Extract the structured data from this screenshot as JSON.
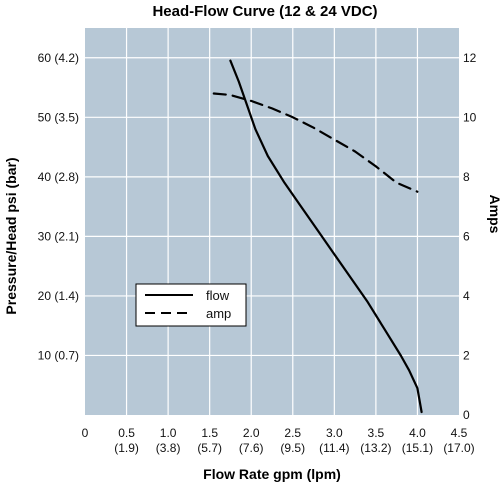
{
  "chart_data": {
    "type": "line",
    "title": "Head-Flow Curve (12 & 24 VDC)",
    "xlabel": "Flow Rate gpm (lpm)",
    "ylabel": "Pressure/Head psi (bar)",
    "y2label": "Amps",
    "xlim": [
      0,
      4.5
    ],
    "ylim": [
      0,
      65
    ],
    "y2lim": [
      0,
      13
    ],
    "grid": true,
    "background_color": "#b7c8d6",
    "grid_color": "#ffffff",
    "line_color": "#000000",
    "legend_position": "center-left",
    "x_ticks": [
      {
        "value": 0,
        "label": "0",
        "sublabel": ""
      },
      {
        "value": 0.5,
        "label": "0.5",
        "sublabel": "(1.9)"
      },
      {
        "value": 1.0,
        "label": "1.0",
        "sublabel": "(3.8)"
      },
      {
        "value": 1.5,
        "label": "1.5",
        "sublabel": "(5.7)"
      },
      {
        "value": 2.0,
        "label": "2.0",
        "sublabel": "(7.6)"
      },
      {
        "value": 2.5,
        "label": "2.5",
        "sublabel": "(9.5)"
      },
      {
        "value": 3.0,
        "label": "3.0",
        "sublabel": "(11.4)"
      },
      {
        "value": 3.5,
        "label": "3.5",
        "sublabel": "(13.2)"
      },
      {
        "value": 4.0,
        "label": "4.0",
        "sublabel": "(15.1)"
      },
      {
        "value": 4.5,
        "label": "4.5",
        "sublabel": "(17.0)"
      }
    ],
    "y_ticks": [
      {
        "value": 10,
        "label": "10 (0.7)"
      },
      {
        "value": 20,
        "label": "20 (1.4)"
      },
      {
        "value": 30,
        "label": "30 (2.1)"
      },
      {
        "value": 40,
        "label": "40 (2.8)"
      },
      {
        "value": 50,
        "label": "50 (3.5)"
      },
      {
        "value": 60,
        "label": "60 (4.2)"
      }
    ],
    "y2_ticks": [
      {
        "value": 0,
        "label": "0"
      },
      {
        "value": 2,
        "label": "2"
      },
      {
        "value": 4,
        "label": "4"
      },
      {
        "value": 6,
        "label": "6"
      },
      {
        "value": 8,
        "label": "8"
      },
      {
        "value": 10,
        "label": "10"
      },
      {
        "value": 12,
        "label": "12"
      }
    ],
    "series": [
      {
        "name": "flow",
        "axis": "left",
        "style": "solid",
        "x": [
          1.75,
          1.85,
          1.95,
          2.05,
          2.2,
          2.4,
          2.6,
          2.8,
          3.0,
          3.2,
          3.4,
          3.6,
          3.8,
          3.9,
          4.0,
          4.05
        ],
        "y": [
          59.5,
          56,
          52,
          48,
          43.5,
          39,
          35,
          31,
          27,
          23,
          19,
          14.5,
          10,
          7.5,
          4.5,
          0.5
        ]
      },
      {
        "name": "amp",
        "axis": "right",
        "style": "dashed",
        "x": [
          1.55,
          1.75,
          2.0,
          2.25,
          2.5,
          2.75,
          3.0,
          3.25,
          3.5,
          3.75,
          4.0
        ],
        "y": [
          10.8,
          10.75,
          10.55,
          10.3,
          10.0,
          9.65,
          9.25,
          8.85,
          8.35,
          7.8,
          7.5
        ]
      }
    ]
  }
}
